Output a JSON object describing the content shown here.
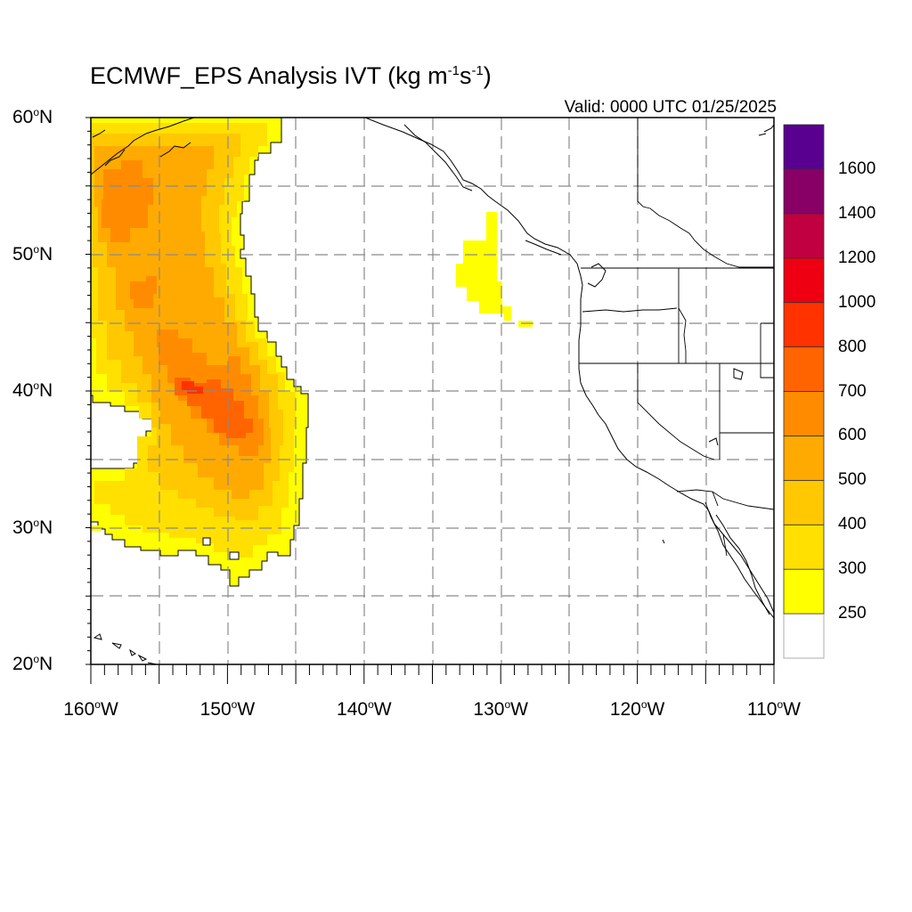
{
  "title": {
    "main": "ECMWF_EPS Analysis IVT (kg m",
    "exp1": "-1",
    "mid": "s",
    "exp2": "-1",
    "end": ")"
  },
  "valid_label": "Valid: 0000 UTC 01/25/2025",
  "map": {
    "projection": "cylindrical equidistant",
    "extent": {
      "lon_min": -160,
      "lon_max": -110,
      "lat_min": 20,
      "lat_max": 60
    },
    "grid": "dashed gray every 5 degrees",
    "lat_ticks": [
      {
        "value": 60,
        "num": "60",
        "deg": "o",
        "hem": "N"
      },
      {
        "value": 50,
        "num": "50",
        "deg": "o",
        "hem": "N"
      },
      {
        "value": 40,
        "num": "40",
        "deg": "o",
        "hem": "N"
      },
      {
        "value": 30,
        "num": "30",
        "deg": "o",
        "hem": "N"
      },
      {
        "value": 20,
        "num": "20",
        "deg": "o",
        "hem": "N"
      }
    ],
    "lon_ticks": [
      {
        "value": -160,
        "num": "160",
        "deg": "o",
        "hem": "W"
      },
      {
        "value": -150,
        "num": "150",
        "deg": "o",
        "hem": "W"
      },
      {
        "value": -140,
        "num": "140",
        "deg": "o",
        "hem": "W"
      },
      {
        "value": -130,
        "num": "130",
        "deg": "o",
        "hem": "W"
      },
      {
        "value": -120,
        "num": "120",
        "deg": "o",
        "hem": "W"
      },
      {
        "value": -110,
        "num": "110",
        "deg": "o",
        "hem": "W"
      }
    ]
  },
  "colorbar": {
    "labels": [
      "250",
      "300",
      "400",
      "500",
      "600",
      "700",
      "800",
      "1000",
      "1200",
      "1400",
      "1600"
    ],
    "colors": [
      "#ffffff",
      "#ffff00",
      "#ffe000",
      "#ffc800",
      "#ffaa00",
      "#ff8c00",
      "#ff6400",
      "#ff3200",
      "#ee0012",
      "#c00040",
      "#880066",
      "#5a0090"
    ]
  }
}
